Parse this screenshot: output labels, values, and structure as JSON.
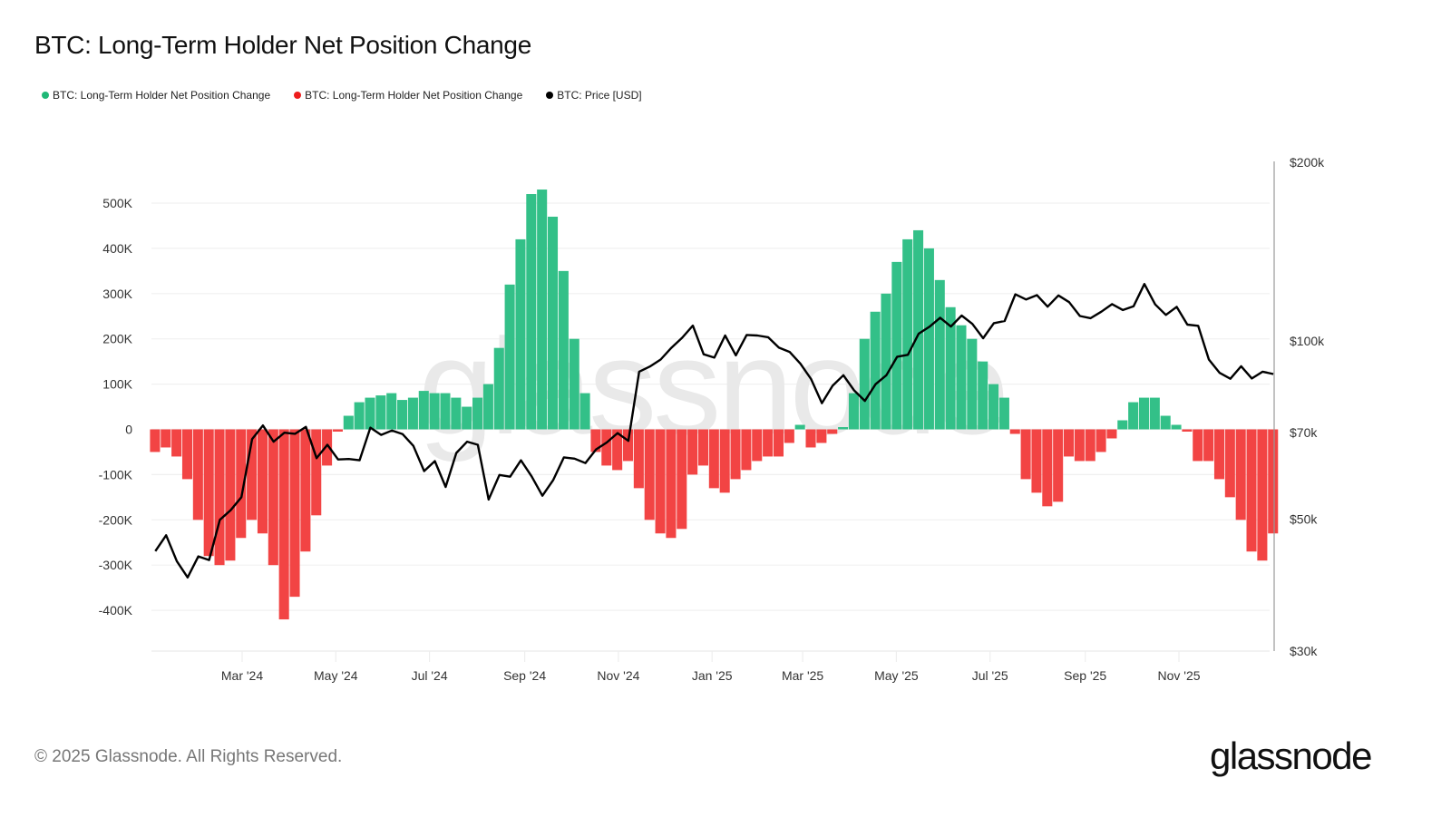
{
  "title": "BTC: Long-Term Holder Net Position Change",
  "legend": [
    {
      "label": "BTC: Long-Term Holder Net Position Change",
      "color": "#1fb877"
    },
    {
      "label": "BTC: Long-Term Holder Net Position Change",
      "color": "#ee1c1c"
    },
    {
      "label": "BTC: Price [USD]",
      "color": "#000000"
    }
  ],
  "footer": "© 2025 Glassnode. All Rights Reserved.",
  "logo": "glassnode",
  "watermark": "glassnode",
  "chart_data": {
    "type": "bar",
    "title": "BTC: Long-Term Holder Net Position Change",
    "x_start": "2024-01-01",
    "x_step_days": 7,
    "x_end": "2025-12-29",
    "x_ticks": [
      "Mar '24",
      "May '24",
      "Jul '24",
      "Sep '24",
      "Nov '24",
      "Jan '25",
      "Mar '25",
      "May '25",
      "Jul '25",
      "Sep '25",
      "Nov '25"
    ],
    "x_tick_dates": [
      "2024-03-01",
      "2024-05-01",
      "2024-07-01",
      "2024-09-01",
      "2024-11-01",
      "2025-01-01",
      "2025-03-01",
      "2025-05-01",
      "2025-07-01",
      "2025-09-01",
      "2025-11-01"
    ],
    "y_left": {
      "ticks": [
        500000,
        400000,
        300000,
        200000,
        100000,
        0,
        -100000,
        -200000,
        -300000,
        -400000
      ],
      "tick_labels": [
        "500K",
        "400K",
        "300K",
        "200K",
        "100K",
        "0",
        "-100K",
        "-200K",
        "-300K",
        "-400K"
      ],
      "range": [
        -490000,
        560000
      ]
    },
    "y_right": {
      "scale": "log",
      "ticks": [
        200000,
        100000,
        70000,
        50000,
        30000
      ],
      "tick_labels": [
        "$200k",
        "$100k",
        "$70k",
        "$50k",
        "$30k"
      ],
      "range": [
        30000,
        200000
      ]
    },
    "grid": true,
    "legend_position": "top-left",
    "colors": {
      "positive": "#33c088",
      "negative": "#f24444",
      "price": "#000000"
    },
    "series": [
      {
        "name": "BTC: Long-Term Holder Net Position Change",
        "axis": "left",
        "type": "bar",
        "values": [
          -50000,
          -40000,
          -60000,
          -110000,
          -200000,
          -280000,
          -300000,
          -290000,
          -240000,
          -200000,
          -230000,
          -300000,
          -420000,
          -370000,
          -270000,
          -190000,
          -80000,
          -5000,
          30000,
          60000,
          70000,
          75000,
          80000,
          65000,
          70000,
          85000,
          80000,
          80000,
          70000,
          50000,
          70000,
          100000,
          180000,
          320000,
          420000,
          520000,
          530000,
          470000,
          350000,
          200000,
          80000,
          -50000,
          -80000,
          -90000,
          -70000,
          -130000,
          -200000,
          -230000,
          -240000,
          -220000,
          -100000,
          -80000,
          -130000,
          -140000,
          -110000,
          -90000,
          -70000,
          -60000,
          -60000,
          -30000,
          10000,
          -40000,
          -30000,
          -10000,
          5000,
          80000,
          200000,
          260000,
          300000,
          370000,
          420000,
          440000,
          400000,
          330000,
          270000,
          230000,
          200000,
          150000,
          100000,
          70000,
          -10000,
          -110000,
          -140000,
          -170000,
          -160000,
          -60000,
          -70000,
          -70000,
          -50000,
          -20000,
          20000,
          60000,
          70000,
          70000,
          30000,
          10000,
          -5000,
          -70000,
          -70000,
          -110000,
          -150000,
          -200000,
          -270000,
          -290000,
          -230000
        ]
      },
      {
        "name": "BTC: Price [USD]",
        "axis": "right",
        "type": "line",
        "values": [
          44200,
          47000,
          42500,
          39900,
          43300,
          42700,
          49900,
          51800,
          54500,
          68300,
          72000,
          67600,
          70000,
          69700,
          71600,
          63400,
          66800,
          63100,
          63200,
          62900,
          71400,
          69400,
          70600,
          69600,
          66500,
          60300,
          62700,
          56700,
          64700,
          67600,
          66800,
          54000,
          59400,
          59000,
          62900,
          59100,
          54800,
          58200,
          63600,
          63300,
          62200,
          65600,
          67400,
          69900,
          67800,
          88700,
          90500,
          93000,
          97300,
          101200,
          106100,
          94900,
          93700,
          102100,
          94500,
          102300,
          102100,
          101400,
          97400,
          95800,
          91500,
          86200,
          78500,
          84000,
          87500,
          82500,
          79200,
          84500,
          87500,
          94000,
          94700,
          102800,
          105600,
          109400,
          105700,
          110300,
          106800,
          101000,
          107100,
          108000,
          119800,
          117400,
          119400,
          114200,
          119300,
          116200,
          110100,
          109200,
          112000,
          115300,
          112700,
          114400,
          124700,
          115200,
          110600,
          114100,
          106500,
          106000,
          93000,
          88300,
          86300,
          90600,
          86400,
          88700,
          87900
        ]
      }
    ]
  }
}
